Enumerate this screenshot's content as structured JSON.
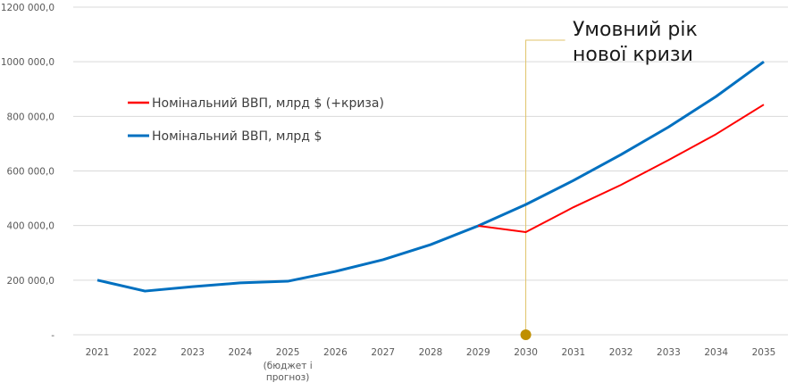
{
  "chart_data": {
    "type": "line",
    "title": "",
    "xlabel": "",
    "ylabel": "",
    "ylim": [
      0,
      1200000
    ],
    "y_ticks": [
      "-",
      "200 000,0",
      "400 000,0",
      "600 000,0",
      "800 000,0",
      "1000 000,0",
      "1200 000,0"
    ],
    "y_tick_values": [
      0,
      200000,
      400000,
      600000,
      800000,
      1000000,
      1200000
    ],
    "categories": [
      "2021",
      "2022",
      "2023",
      "2024",
      "2025",
      "2026",
      "2027",
      "2028",
      "2029",
      "2030",
      "2031",
      "2032",
      "2033",
      "2034",
      "2035"
    ],
    "category_sublabels": {
      "2025": [
        "(бюджет і",
        "прогноз)"
      ]
    },
    "grid": true,
    "legend_position": "upper-left inside",
    "series": [
      {
        "name": "Номінальний ВВП, млрд $ (+криза)",
        "color": "#ff0000",
        "values": [
          null,
          null,
          null,
          null,
          null,
          null,
          null,
          null,
          399000,
          376000,
          467000,
          549000,
          640000,
          735000,
          843000
        ]
      },
      {
        "name": "Номінальний ВВП, млрд $",
        "color": "#0070c0",
        "values": [
          200000,
          160000,
          176000,
          190000,
          196000,
          232000,
          275000,
          330000,
          399000,
          477000,
          565000,
          660000,
          761000,
          873000,
          1000000
        ]
      }
    ],
    "annotation": {
      "lines": [
        "Умовний рік",
        "нової кризи"
      ],
      "category": "2030",
      "marker_color": "#bf8f00",
      "line_color": "#e0c36a"
    }
  }
}
